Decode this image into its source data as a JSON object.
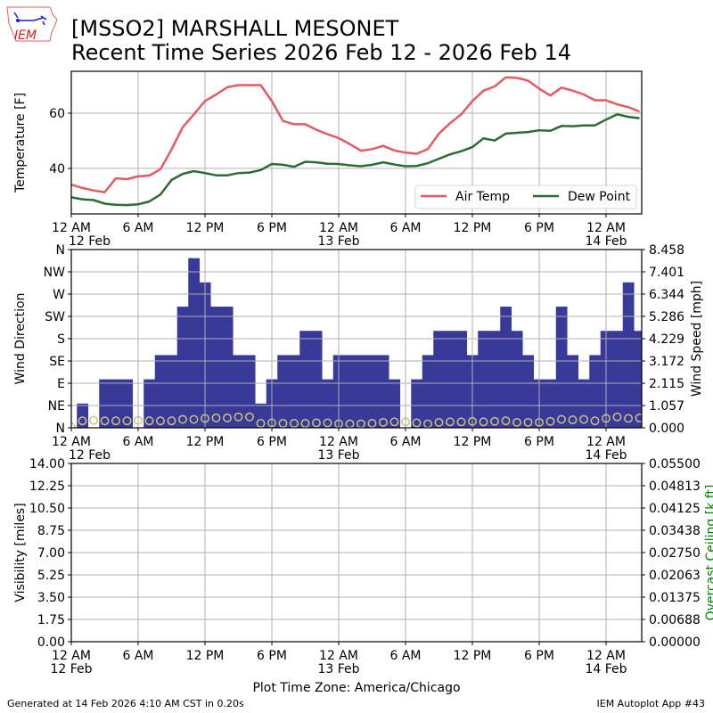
{
  "header": {
    "title_line1": "[MSSO2] MARSHALL MESONET",
    "title_line2": "Recent Time Series 2026 Feb 12 - 2026 Feb 14",
    "logo_text": "IEM"
  },
  "footer": {
    "generated": "Generated at 14 Feb 2026 4:10 AM CST in 0.20s",
    "app": "IEM Autoplot App #43",
    "timezone_label": "Plot Time Zone: America/Chicago"
  },
  "x_axis": {
    "range_hours": [
      0,
      51.2
    ],
    "tick_hours": [
      0,
      6,
      12,
      18,
      24,
      30,
      36,
      42,
      48
    ],
    "tick_labels": [
      "12 AM",
      "6 AM",
      "12 PM",
      "6 PM",
      "12 AM",
      "6 AM",
      "12 PM",
      "6 PM",
      "12 AM"
    ],
    "tick_dates": [
      "12 Feb",
      "",
      "",
      "",
      "13 Feb",
      "",
      "",
      "",
      "14 Feb"
    ]
  },
  "chart_data": [
    {
      "type": "line",
      "ylabel": "Temperature [F]",
      "ylim": [
        23.5,
        75.2
      ],
      "yticks": [
        40,
        60
      ],
      "ytick_labels": [
        "40",
        "60"
      ],
      "grid": true,
      "legend": "lower-right",
      "x_hours": [
        0,
        1,
        2,
        3,
        4,
        5,
        6,
        7,
        8,
        9,
        10,
        11,
        12,
        13,
        14,
        15,
        16,
        17,
        18,
        19,
        20,
        21,
        22,
        23,
        24,
        25,
        26,
        27,
        28,
        29,
        30,
        31,
        32,
        33,
        34,
        35,
        36,
        37,
        38,
        39,
        40,
        41,
        42,
        43,
        44,
        45,
        46,
        47,
        48,
        49,
        50,
        51
      ],
      "series": [
        {
          "name": "Air Temp",
          "color": "#e05c62",
          "values": [
            34.1,
            32.9,
            32.0,
            31.4,
            36.4,
            36.1,
            37.1,
            37.4,
            39.7,
            46.9,
            54.9,
            59.6,
            64.4,
            66.8,
            69.4,
            70.2,
            70.2,
            70.2,
            64.4,
            57.2,
            56.0,
            56.0,
            54.0,
            52.4,
            51.0,
            48.8,
            46.4,
            47.0,
            48.2,
            46.5,
            45.7,
            45.3,
            47.0,
            52.6,
            56.4,
            59.6,
            64.4,
            68.2,
            69.7,
            73.0,
            72.8,
            71.8,
            68.9,
            66.4,
            69.3,
            68.2,
            66.8,
            64.7,
            64.7,
            63.2,
            62.2,
            60.6
          ]
        },
        {
          "name": "Dew Point",
          "color": "#2e6b32",
          "values": [
            29.5,
            28.8,
            28.5,
            27.2,
            26.8,
            26.7,
            27.0,
            28.0,
            30.5,
            35.8,
            38.0,
            39.0,
            38.3,
            37.5,
            37.5,
            38.3,
            38.5,
            39.4,
            41.6,
            41.3,
            40.6,
            42.4,
            42.2,
            41.7,
            41.6,
            41.1,
            40.8,
            41.3,
            42.2,
            41.4,
            40.8,
            40.9,
            41.9,
            43.5,
            45.1,
            46.2,
            47.7,
            50.9,
            50.1,
            52.6,
            52.9,
            53.2,
            53.8,
            53.6,
            55.4,
            55.3,
            55.6,
            55.6,
            57.7,
            59.6,
            58.7,
            58.2
          ]
        }
      ]
    },
    {
      "type": "bar",
      "ylabel": "Wind Direction",
      "y2label": "Wind Speed [mph]",
      "ylim": [
        0,
        360
      ],
      "yticks": [
        0,
        45,
        90,
        135,
        180,
        225,
        270,
        315,
        360
      ],
      "ytick_labels": [
        "N",
        "NE",
        "E",
        "SE",
        "S",
        "SW",
        "W",
        "NW",
        "N"
      ],
      "y2lim": [
        0,
        8.458
      ],
      "y2ticks": [
        0,
        1.057,
        2.115,
        3.172,
        4.229,
        5.286,
        6.344,
        7.401,
        8.458
      ],
      "y2tick_labels": [
        "0.000",
        "1.057",
        "2.115",
        "3.172",
        "4.229",
        "5.286",
        "6.344",
        "7.401",
        "8.458"
      ],
      "grid": true,
      "speed_bar_color": "#393999",
      "direction_marker_color": "#c8c47a",
      "speed_start_hours": [
        0.5,
        1.5,
        2.5,
        3.5,
        4.5,
        5.5,
        6.5,
        7.5,
        8.5,
        9.5,
        10.5,
        11.5,
        12.5,
        13.5,
        14.5,
        15.5,
        16.5,
        17.5,
        18.5,
        19.5,
        20.5,
        21.5,
        22.5,
        23.5,
        24.5,
        25.5,
        26.5,
        27.5,
        28.5,
        29.5,
        30.5,
        31.5,
        32.5,
        33.5,
        34.5,
        35.5,
        36.5,
        37.5,
        38.5,
        39.5,
        40.5,
        41.5,
        42.5,
        43.5,
        44.5,
        45.5,
        46.5,
        47.5,
        48.5,
        49.5,
        50.5
      ],
      "wind_speed_mph": [
        1.15,
        0,
        2.3,
        2.3,
        2.3,
        0,
        2.3,
        3.45,
        3.45,
        5.75,
        8.05,
        6.9,
        5.75,
        5.75,
        3.45,
        3.45,
        1.15,
        2.3,
        3.45,
        3.45,
        4.6,
        4.6,
        2.3,
        3.45,
        3.45,
        3.45,
        3.45,
        3.45,
        2.3,
        0,
        2.3,
        3.45,
        4.6,
        4.6,
        4.6,
        3.45,
        4.6,
        4.6,
        5.75,
        4.6,
        3.45,
        2.3,
        2.3,
        5.75,
        3.45,
        2.3,
        3.45,
        4.6,
        4.6,
        6.9,
        4.6
      ],
      "direction_hours": [
        0,
        1,
        2,
        3,
        4,
        5,
        6,
        7,
        8,
        9,
        10,
        11,
        12,
        13,
        14,
        15,
        16,
        17,
        18,
        19,
        20,
        21,
        22,
        23,
        24,
        25,
        26,
        27,
        28,
        29,
        30,
        31,
        32,
        33,
        34,
        35,
        36,
        37,
        38,
        39,
        40,
        41,
        42,
        43,
        44,
        45,
        46,
        47,
        48,
        49,
        50,
        51
      ],
      "wind_direction_deg": [
        2,
        14,
        15,
        14,
        14,
        14,
        15,
        14,
        14,
        14,
        17,
        17,
        19,
        20,
        20,
        22,
        22,
        9,
        10,
        9,
        9,
        9,
        10,
        10,
        8,
        8,
        8,
        9,
        11,
        12,
        12,
        10,
        8,
        11,
        12,
        12,
        13,
        12,
        13,
        14,
        11,
        11,
        11,
        13,
        17,
        16,
        17,
        14,
        19,
        22,
        19,
        20
      ]
    },
    {
      "type": "line",
      "ylabel": "Visibility [miles]",
      "y2label": "Overcast Ceiling [k ft]",
      "y2label_color": "#008000",
      "ylim": [
        0,
        14
      ],
      "yticks": [
        0,
        1.75,
        3.5,
        5.25,
        7,
        8.75,
        10.5,
        12.25,
        14
      ],
      "ytick_labels": [
        "0.00",
        "1.75",
        "3.50",
        "5.25",
        "7.00",
        "8.75",
        "10.50",
        "12.25",
        "14.00"
      ],
      "y2lim": [
        0,
        0.055
      ],
      "y2ticks": [
        0,
        0.00688,
        0.01375,
        0.02063,
        0.0275,
        0.03438,
        0.04125,
        0.04813,
        0.055
      ],
      "y2tick_labels": [
        "0.00000",
        "0.00688",
        "0.01375",
        "0.02063",
        "0.02750",
        "0.03438",
        "0.04125",
        "0.04813",
        "0.05500"
      ],
      "grid": true,
      "series": []
    }
  ]
}
